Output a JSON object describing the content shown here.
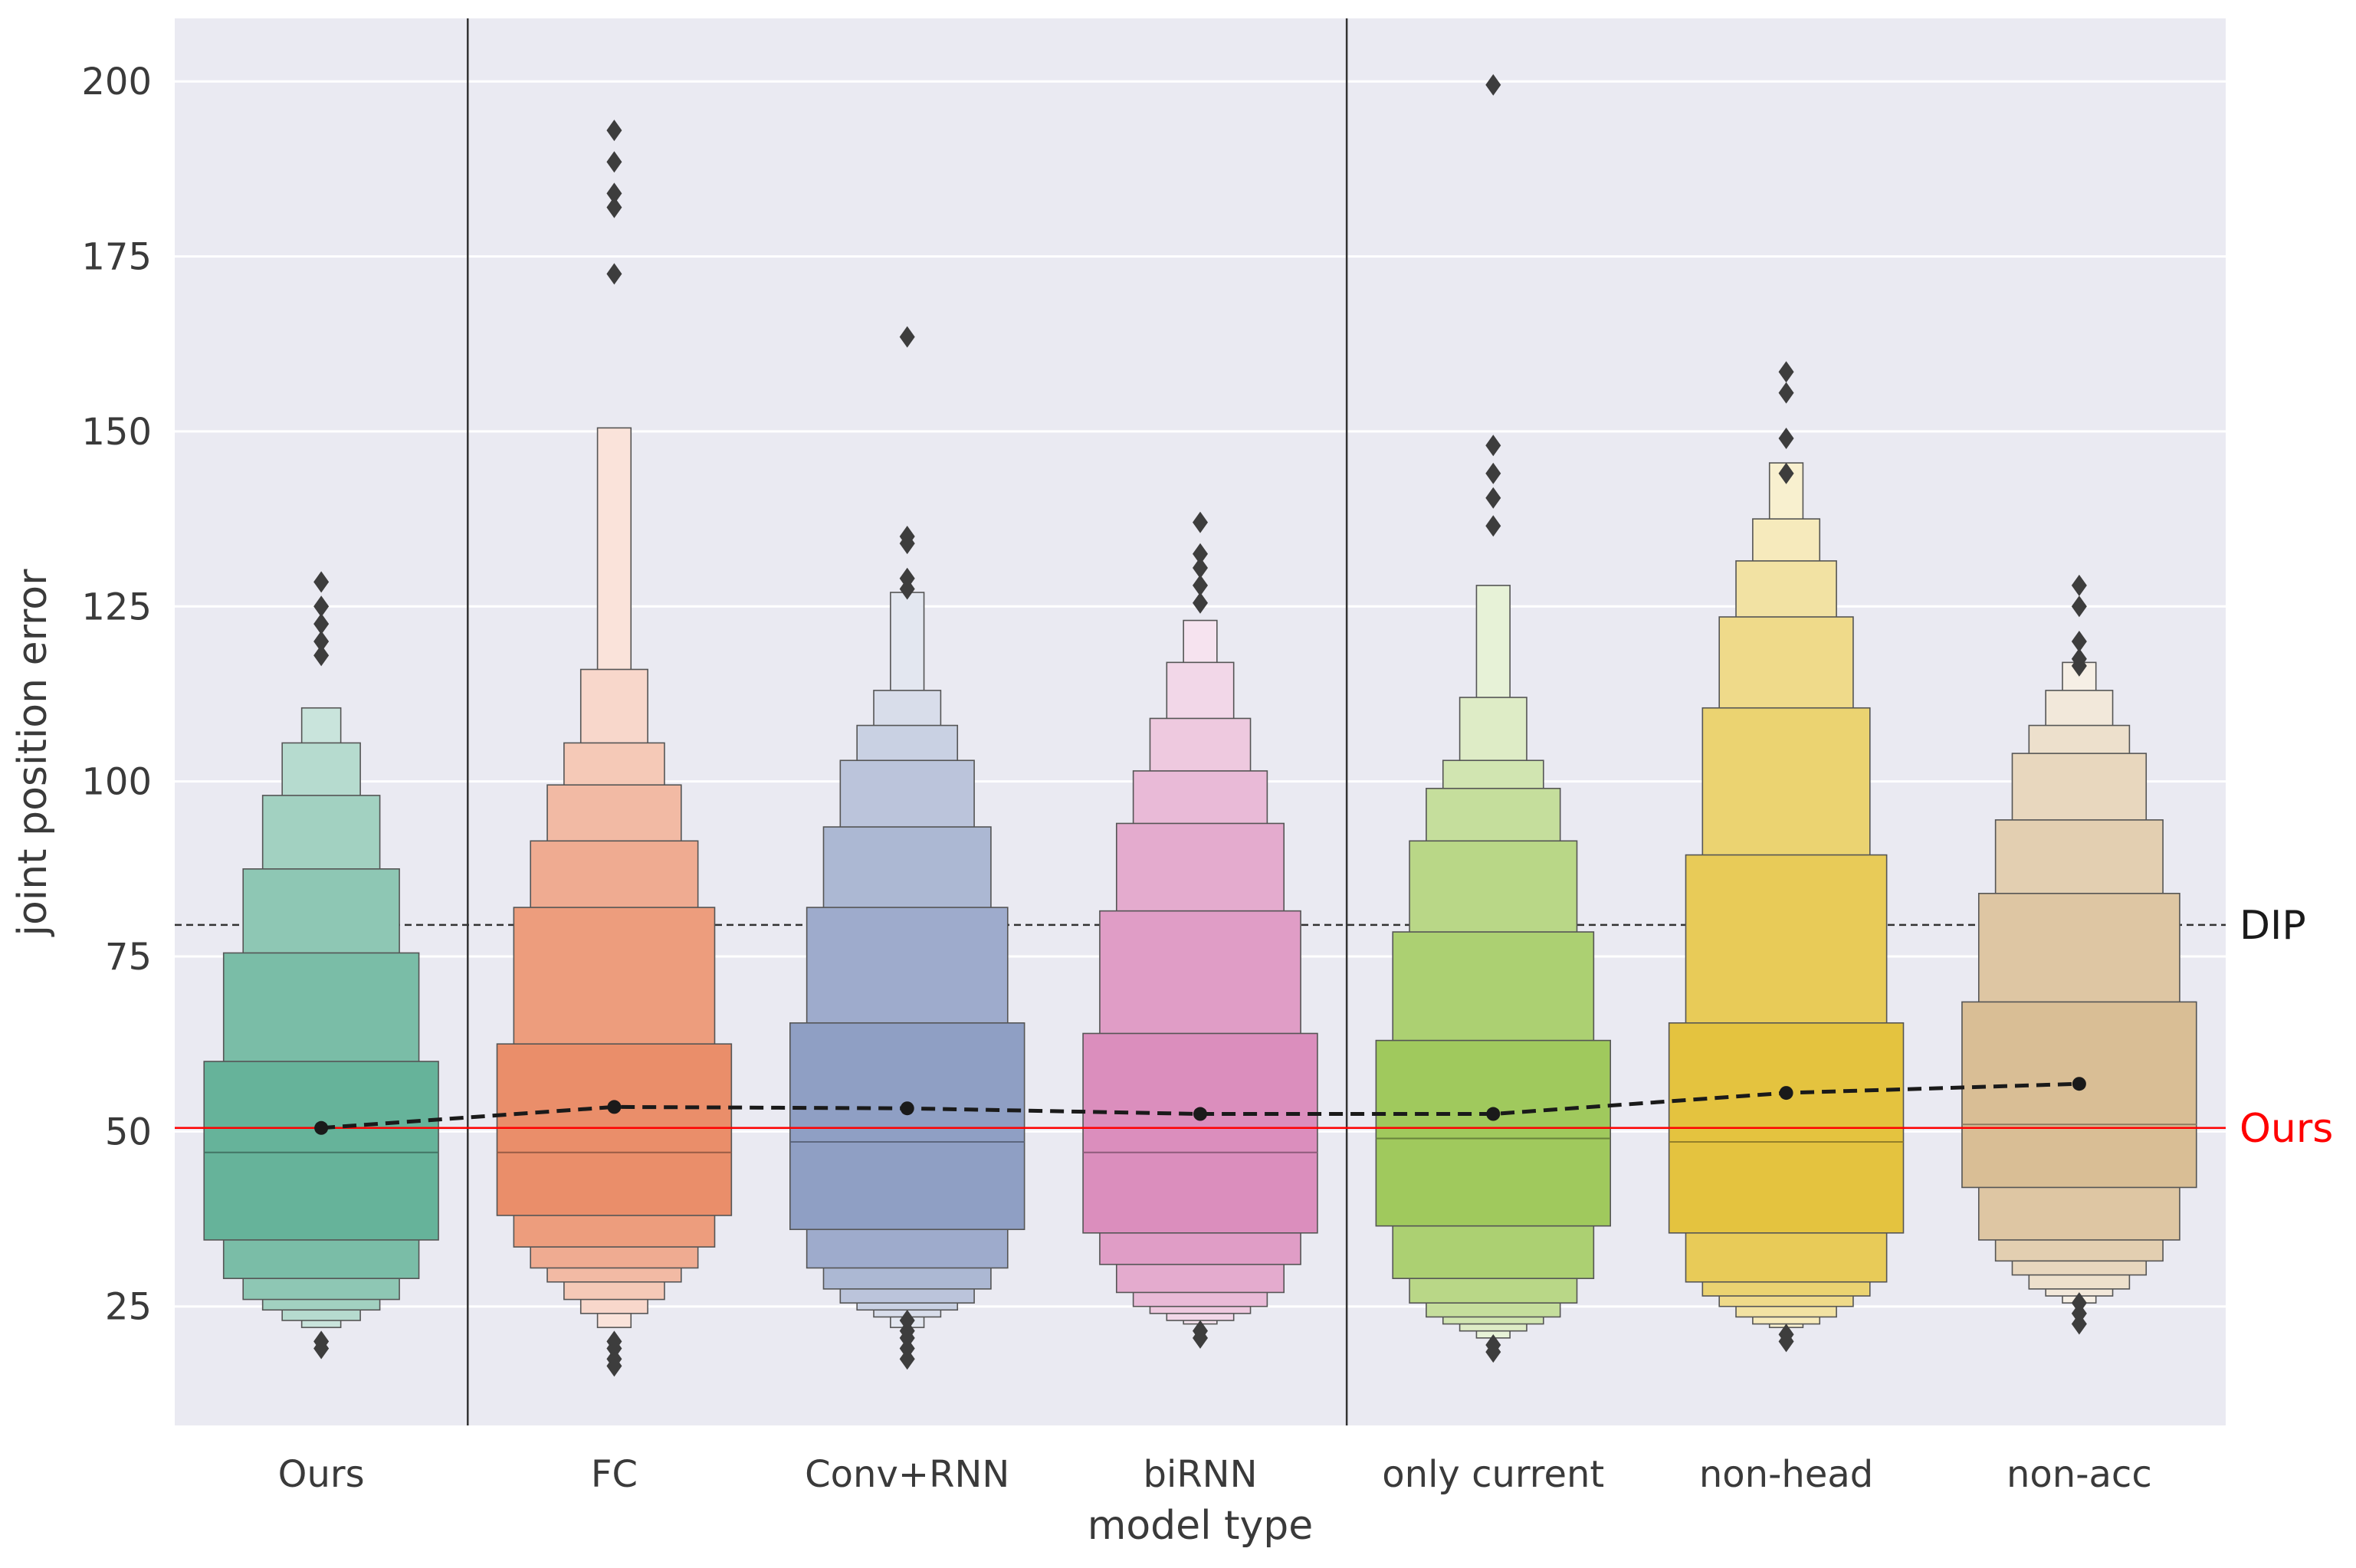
{
  "chart_data": {
    "type": "boxen",
    "xlabel": "model type",
    "ylabel": "joint position error",
    "ylim": [
      8,
      209
    ],
    "yticks": [
      25,
      50,
      75,
      100,
      125,
      150,
      175,
      200
    ],
    "grid": true,
    "separators_after_category_index": [
      0,
      3
    ],
    "categories": [
      "Ours",
      "FC",
      "Conv+RNN",
      "biRNN",
      "only current",
      "non-head",
      "non-acc"
    ],
    "colors": [
      "#66b39a",
      "#ea8e6a",
      "#8f9fc4",
      "#db8ebd",
      "#a0c95d",
      "#e4c33f",
      "#d9be95"
    ],
    "reference_lines": [
      {
        "label": "DIP",
        "value": 79.5,
        "color": "#333333",
        "style": "dashed"
      },
      {
        "label": "Ours",
        "value": 50.5,
        "color": "#ff0000",
        "style": "solid"
      }
    ],
    "mean_line": {
      "style": "dashed",
      "color": "#1a1a1a"
    },
    "series": [
      {
        "category": "Ours",
        "mean": 50.5,
        "median": 47,
        "levels": [
          {
            "low": 34.5,
            "high": 60
          },
          {
            "low": 29,
            "high": 75.5
          },
          {
            "low": 26,
            "high": 87.5
          },
          {
            "low": 24.5,
            "high": 98
          },
          {
            "low": 23,
            "high": 105.5
          },
          {
            "low": 22,
            "high": 110.5
          }
        ],
        "outliers": [
          19,
          20,
          118,
          120,
          122.5,
          125,
          128.5
        ]
      },
      {
        "category": "FC",
        "mean": 53.5,
        "median": 47,
        "levels": [
          {
            "low": 38,
            "high": 62.5
          },
          {
            "low": 33.5,
            "high": 82
          },
          {
            "low": 30.5,
            "high": 91.5
          },
          {
            "low": 28.5,
            "high": 99.5
          },
          {
            "low": 26,
            "high": 105.5
          },
          {
            "low": 24,
            "high": 116
          },
          {
            "low": 22,
            "high": 150.5
          }
        ],
        "outliers": [
          16.5,
          17.5,
          19,
          20,
          172.5,
          182,
          184,
          188.5,
          193
        ]
      },
      {
        "category": "Conv+RNN",
        "mean": 53.3,
        "median": 48.5,
        "levels": [
          {
            "low": 36,
            "high": 65.5
          },
          {
            "low": 30.5,
            "high": 82
          },
          {
            "low": 27.5,
            "high": 93.5
          },
          {
            "low": 25.5,
            "high": 103
          },
          {
            "low": 24.5,
            "high": 108
          },
          {
            "low": 23.5,
            "high": 113
          },
          {
            "low": 22,
            "high": 127
          }
        ],
        "outliers": [
          17.5,
          19,
          20.5,
          21.5,
          23,
          127.5,
          129,
          134,
          135,
          163.5
        ]
      },
      {
        "category": "biRNN",
        "mean": 52.5,
        "median": 47,
        "levels": [
          {
            "low": 35.5,
            "high": 64
          },
          {
            "low": 31,
            "high": 81.5
          },
          {
            "low": 27,
            "high": 94
          },
          {
            "low": 25,
            "high": 101.5
          },
          {
            "low": 24,
            "high": 109
          },
          {
            "low": 23,
            "high": 117
          },
          {
            "low": 22.5,
            "high": 123
          }
        ],
        "outliers": [
          20.5,
          21.5,
          125.5,
          128,
          130.5,
          132.5,
          137
        ]
      },
      {
        "category": "only current",
        "mean": 52.5,
        "median": 49,
        "levels": [
          {
            "low": 36.5,
            "high": 63
          },
          {
            "low": 29,
            "high": 78.5
          },
          {
            "low": 25.5,
            "high": 91.5
          },
          {
            "low": 23.5,
            "high": 99
          },
          {
            "low": 22.5,
            "high": 103
          },
          {
            "low": 21.5,
            "high": 112
          },
          {
            "low": 20.5,
            "high": 128
          }
        ],
        "outliers": [
          18.5,
          19.5,
          136.5,
          140.5,
          144,
          148,
          199.5
        ]
      },
      {
        "category": "non-head",
        "mean": 55.5,
        "median": 48.5,
        "levels": [
          {
            "low": 35.5,
            "high": 65.5
          },
          {
            "low": 28.5,
            "high": 89.5
          },
          {
            "low": 26.5,
            "high": 110.5
          },
          {
            "low": 25,
            "high": 123.5
          },
          {
            "low": 23.5,
            "high": 131.5
          },
          {
            "low": 22.5,
            "high": 137.5
          },
          {
            "low": 22,
            "high": 145.5
          }
        ],
        "outliers": [
          20,
          21,
          144,
          149,
          155.5,
          158.5
        ]
      },
      {
        "category": "non-acc",
        "mean": 56.8,
        "median": 51,
        "levels": [
          {
            "low": 42,
            "high": 68.5
          },
          {
            "low": 34.5,
            "high": 84
          },
          {
            "low": 31.5,
            "high": 94.5
          },
          {
            "low": 29.5,
            "high": 104
          },
          {
            "low": 27.5,
            "high": 108
          },
          {
            "low": 26.5,
            "high": 113
          },
          {
            "low": 25.5,
            "high": 117
          }
        ],
        "outliers": [
          22.5,
          24,
          25.5,
          116.5,
          117.5,
          120,
          125,
          128
        ]
      }
    ]
  }
}
